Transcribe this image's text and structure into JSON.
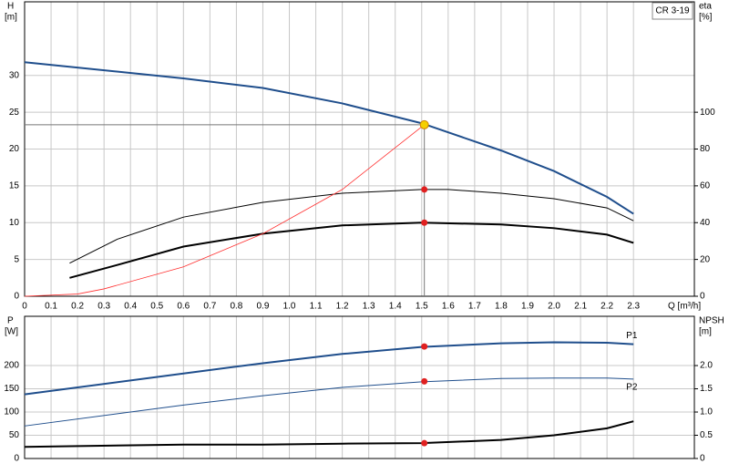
{
  "chart_data": [
    {
      "type": "line",
      "title": "CR 3-19",
      "ylabel": "H",
      "yunit": "[m]",
      "y2label": "eta",
      "y2unit": "[%]",
      "xlabel": "Q [m³/h]",
      "xlim": [
        0,
        2.53
      ],
      "ylim": [
        0,
        40
      ],
      "y2lim": [
        0,
        160
      ],
      "xticks": [
        0,
        0.1,
        0.2,
        0.3,
        0.4,
        0.5,
        0.6,
        0.7,
        0.8,
        0.9,
        {
          "value": 1,
          "label": "1.0"
        },
        1.1,
        1.2,
        1.3,
        1.4,
        1.5,
        1.6,
        1.7,
        1.8,
        1.9,
        {
          "value": 2,
          "label": "2.0"
        },
        2.1,
        2.2,
        2.3
      ],
      "xtick_labels": true,
      "yticks": [
        0,
        5,
        10,
        15,
        20,
        25,
        30
      ],
      "y2ticks": [
        0,
        20,
        40,
        60,
        80,
        100
      ],
      "grid": true,
      "series": [
        {
          "color": "#1f4e8c",
          "width": 2,
          "x": [
            0,
            0.6,
            0.9,
            1.2,
            1.5,
            1.8,
            2.0,
            2.2,
            2.3
          ],
          "values": [
            31.8,
            29.6,
            28.3,
            26.2,
            23.5,
            19.8,
            17,
            13.5,
            11.2
          ]
        },
        {
          "color": "#000000",
          "width": 1,
          "axis": "y2",
          "x": [
            0.17,
            0.35,
            0.6,
            0.9,
            1.2,
            1.5,
            1.6,
            1.8,
            2.0,
            2.2,
            2.3
          ],
          "values": [
            18,
            31,
            43,
            51,
            56,
            58,
            58,
            56,
            53,
            48,
            41
          ]
        },
        {
          "color": "#000000",
          "width": 2,
          "axis": "y2",
          "x": [
            0.17,
            0.35,
            0.6,
            0.9,
            1.2,
            1.5,
            1.8,
            2.0,
            2.2,
            2.3
          ],
          "values": [
            10,
            17,
            27,
            34,
            38.5,
            40,
            39,
            37,
            33.5,
            29
          ]
        },
        {
          "color": "#ff3030",
          "width": 0.8,
          "x": [
            0,
            0.2,
            0.3,
            0.6,
            0.9,
            1.2,
            1.51
          ],
          "values": [
            0,
            0.3,
            1,
            4,
            8.5,
            14.5,
            23.3
          ]
        }
      ],
      "markers": [
        {
          "x": 1.51,
          "y": 58,
          "axis": "y2",
          "color": "#e02020"
        },
        {
          "x": 1.51,
          "y": 40,
          "axis": "y2",
          "color": "#e02020"
        },
        {
          "x": 1.51,
          "y": 23.3,
          "color": "#f5d000",
          "crosshair": true
        }
      ]
    },
    {
      "type": "line",
      "ylabel": "P",
      "yunit": "[W]",
      "y2label": "NPSH",
      "y2unit": "[m]",
      "xlim": [
        0,
        2.53
      ],
      "ylim": [
        0,
        306
      ],
      "y2lim": [
        0,
        3.06
      ],
      "xticks": [
        0,
        0.1,
        0.2,
        0.3,
        0.4,
        0.5,
        0.6,
        0.7,
        0.8,
        0.9,
        1,
        1.1,
        1.2,
        1.3,
        1.4,
        1.5,
        1.6,
        1.7,
        1.8,
        1.9,
        2,
        2.1,
        2.2,
        2.3
      ],
      "xtick_labels": false,
      "yticks": [
        0,
        50,
        100,
        150,
        200
      ],
      "y2ticks": [
        0,
        0.5,
        {
          "value": 1,
          "label": "1.0"
        },
        1.5,
        {
          "value": 2,
          "label": "2.0"
        }
      ],
      "grid": true,
      "series": [
        {
          "name": "P1",
          "color": "#1f4e8c",
          "width": 2,
          "x": [
            0,
            0.6,
            0.9,
            1.2,
            1.5,
            1.8,
            2.0,
            2.2,
            2.3
          ],
          "values": [
            138,
            183,
            205,
            225,
            240,
            248,
            250,
            249,
            246
          ]
        },
        {
          "name": "P2",
          "color": "#1f4e8c",
          "width": 1,
          "x": [
            0,
            0.6,
            0.9,
            1.2,
            1.5,
            1.8,
            2.0,
            2.2,
            2.3
          ],
          "values": [
            70,
            115,
            135,
            153,
            165,
            172,
            173,
            173,
            171
          ]
        },
        {
          "color": "#000000",
          "width": 2,
          "axis": "y2",
          "x": [
            0,
            0.6,
            0.9,
            1.2,
            1.5,
            1.8,
            2.0,
            2.2,
            2.3
          ],
          "values": [
            0.25,
            0.3,
            0.3,
            0.32,
            0.33,
            0.4,
            0.5,
            0.65,
            0.8
          ]
        }
      ],
      "markers": [
        {
          "x": 1.51,
          "y": 241,
          "color": "#e02020"
        },
        {
          "x": 1.51,
          "y": 166,
          "color": "#e02020"
        },
        {
          "x": 1.51,
          "y": 0.33,
          "axis": "y2",
          "color": "#e02020"
        }
      ]
    }
  ]
}
